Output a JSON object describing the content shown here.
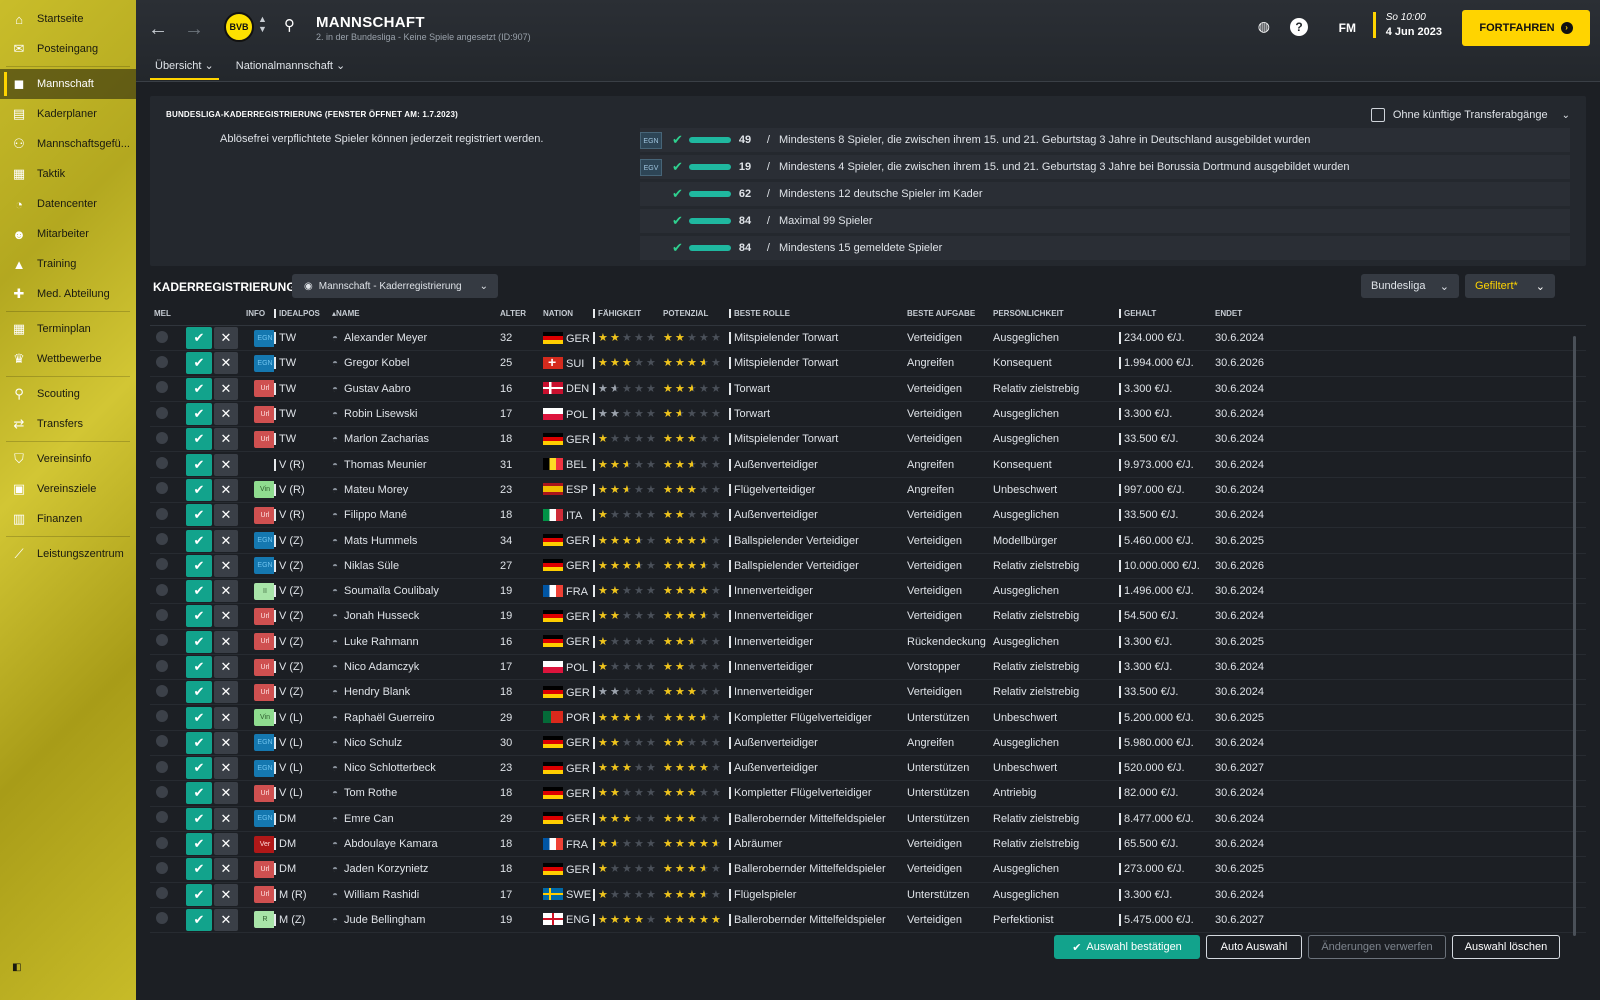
{
  "sidebar": {
    "items": [
      {
        "label": "Startseite",
        "icon": "home-icon",
        "glyph": "⌂"
      },
      {
        "label": "Posteingang",
        "icon": "inbox-icon",
        "glyph": "✉"
      },
      {
        "label": "Mannschaft",
        "icon": "shirt-icon",
        "glyph": "◼",
        "active": true
      },
      {
        "label": "Kaderplaner",
        "icon": "clipboard-icon",
        "glyph": "▤"
      },
      {
        "label": "Mannschaftsgefü...",
        "icon": "team-dynamics-icon",
        "glyph": "⚇"
      },
      {
        "label": "Taktik",
        "icon": "tactics-icon",
        "glyph": "▦"
      },
      {
        "label": "Datencenter",
        "icon": "data-center-icon",
        "glyph": "◔"
      },
      {
        "label": "Mitarbeiter",
        "icon": "staff-icon",
        "glyph": "☻"
      },
      {
        "label": "Training",
        "icon": "training-icon",
        "glyph": "▲"
      },
      {
        "label": "Med. Abteilung",
        "icon": "medical-icon",
        "glyph": "✚"
      },
      {
        "label": "Terminplan",
        "icon": "calendar-icon",
        "glyph": "▦"
      },
      {
        "label": "Wettbewerbe",
        "icon": "trophy-icon",
        "glyph": "♛"
      },
      {
        "label": "Scouting",
        "icon": "scouting-icon",
        "glyph": "⚲"
      },
      {
        "label": "Transfers",
        "icon": "transfers-icon",
        "glyph": "⇄"
      },
      {
        "label": "Vereinsinfo",
        "icon": "club-info-icon",
        "glyph": "⛉"
      },
      {
        "label": "Vereinsziele",
        "icon": "club-goals-icon",
        "glyph": "▣"
      },
      {
        "label": "Finanzen",
        "icon": "finances-icon",
        "glyph": "▥"
      },
      {
        "label": "Leistungszentrum",
        "icon": "performance-icon",
        "glyph": "⟋"
      }
    ]
  },
  "header": {
    "title": "MANNSCHAFT",
    "subtitle": "2. in der Bundesliga - Keine Spiele angesetzt (ID:907)",
    "club_logo": "BVB",
    "tabs": [
      {
        "label": "Übersicht",
        "active": true
      },
      {
        "label": "Nationalmannschaft",
        "active": false
      }
    ],
    "fm_label": "FM",
    "date_time": "So 10:00",
    "date_day": "4 Jun 2023",
    "continue_label": "FORTFAHREN"
  },
  "registration": {
    "title": "BUNDESLIGA-KADERREGISTRIERUNG (FENSTER ÖFFNET AM: 1.7.2023)",
    "note": "Ablösefrei verpflichtete Spieler können jederzeit registriert werden.",
    "future_transfers_label": "Ohne künftige Transferabgänge",
    "rules": [
      {
        "tag": "EGN",
        "value": "49",
        "text": "Mindestens 8 Spieler, die zwischen ihrem 15. und 21. Geburtstag 3 Jahre in Deutschland ausgebildet wurden"
      },
      {
        "tag": "EGV",
        "value": "19",
        "text": "Mindestens 4 Spieler, die zwischen ihrem 15. und 21. Geburtstag 3 Jahre bei Borussia Dortmund ausgebildet wurden"
      },
      {
        "tag": "",
        "value": "62",
        "text": "Mindestens 12 deutsche Spieler im Kader"
      },
      {
        "tag": "",
        "value": "84",
        "text": "Maximal 99 Spieler"
      },
      {
        "tag": "",
        "value": "84",
        "text": "Mindestens 15 gemeldete Spieler"
      }
    ]
  },
  "squad": {
    "title": "KADERREGISTRIERUNG",
    "view_select": "Mannschaft - Kaderregistrierung",
    "league_select": "Bundesliga",
    "filter_select": "Gefiltert*",
    "columns": {
      "mel": "MEL",
      "info": "INFO",
      "pos": "IDEALPOS",
      "name": "NAME",
      "age": "ALTER",
      "nation": "NATION",
      "ability": "FÄHIGKEIT",
      "potential": "POTENZIAL",
      "role": "BESTE ROLLE",
      "task": "BESTE AUFGABE",
      "personality": "PERSÖNLICHKEIT",
      "salary": "GEHALT",
      "ends": "ENDET"
    },
    "players": [
      {
        "info": "EGN",
        "pos": "TW",
        "name": "Alexander Meyer",
        "age": "32",
        "nation": "GER",
        "ability": 2,
        "potential": 2,
        "grey": false,
        "role": "Mitspielender Torwart",
        "task": "Verteidigen",
        "personality": "Ausgeglichen",
        "salary": "234.000 €/J.",
        "ends": "30.6.2024"
      },
      {
        "info": "EGN",
        "pos": "TW",
        "name": "Gregor Kobel",
        "age": "25",
        "nation": "SUI",
        "ability": 3,
        "potential": 3.5,
        "grey": false,
        "role": "Mitspielender Torwart",
        "task": "Angreifen",
        "personality": "Konsequent",
        "salary": "1.994.000 €/J.",
        "ends": "30.6.2026"
      },
      {
        "info": "Url",
        "pos": "TW",
        "name": "Gustav Aabro",
        "age": "16",
        "nation": "DEN",
        "ability": 1.5,
        "potential": 2.5,
        "grey": true,
        "role": "Torwart",
        "task": "Verteidigen",
        "personality": "Relativ zielstrebig",
        "salary": "3.300 €/J.",
        "ends": "30.6.2024"
      },
      {
        "info": "Url",
        "pos": "TW",
        "name": "Robin Lisewski",
        "age": "17",
        "nation": "POL",
        "ability": 2,
        "potential": 1.5,
        "grey": true,
        "role": "Torwart",
        "task": "Verteidigen",
        "personality": "Ausgeglichen",
        "salary": "3.300 €/J.",
        "ends": "30.6.2024"
      },
      {
        "info": "Url",
        "pos": "TW",
        "name": "Marlon Zacharias",
        "age": "18",
        "nation": "GER",
        "ability": 1,
        "potential": 3,
        "grey": false,
        "role": "Mitspielender Torwart",
        "task": "Verteidigen",
        "personality": "Ausgeglichen",
        "salary": "33.500 €/J.",
        "ends": "30.6.2024"
      },
      {
        "info": "",
        "pos": "V (R)",
        "name": "Thomas Meunier",
        "age": "31",
        "nation": "BEL",
        "ability": 2.5,
        "potential": 2.5,
        "grey": false,
        "role": "Außenverteidiger",
        "task": "Angreifen",
        "personality": "Konsequent",
        "salary": "9.973.000 €/J.",
        "ends": "30.6.2024"
      },
      {
        "info": "Vin",
        "pos": "V (R)",
        "name": "Mateu Morey",
        "age": "23",
        "nation": "ESP",
        "ability": 2.5,
        "potential": 3,
        "grey": false,
        "role": "Flügelverteidiger",
        "task": "Angreifen",
        "personality": "Unbeschwert",
        "salary": "997.000 €/J.",
        "ends": "30.6.2024"
      },
      {
        "info": "Url",
        "pos": "V (R)",
        "name": "Filippo Mané",
        "age": "18",
        "nation": "ITA",
        "ability": 1,
        "potential": 2,
        "grey": false,
        "role": "Außenverteidiger",
        "task": "Verteidigen",
        "personality": "Ausgeglichen",
        "salary": "33.500 €/J.",
        "ends": "30.6.2024"
      },
      {
        "info": "EGN",
        "pos": "V (Z)",
        "name": "Mats Hummels",
        "age": "34",
        "nation": "GER",
        "ability": 3.5,
        "potential": 3.5,
        "grey": false,
        "role": "Ballspielender Verteidiger",
        "task": "Verteidigen",
        "personality": "Modellbürger",
        "salary": "5.460.000 €/J.",
        "ends": "30.6.2025"
      },
      {
        "info": "EGN",
        "pos": "V (Z)",
        "name": "Niklas Süle",
        "age": "27",
        "nation": "GER",
        "ability": 3.5,
        "potential": 3.5,
        "grey": false,
        "role": "Ballspielender Verteidiger",
        "task": "Verteidigen",
        "personality": "Relativ zielstrebig",
        "salary": "10.000.000 €/J.",
        "ends": "30.6.2026"
      },
      {
        "info": "II",
        "pos": "V (Z)",
        "name": "Soumaïla Coulibaly",
        "age": "19",
        "nation": "FRA",
        "ability": 2,
        "potential": 4,
        "grey": false,
        "role": "Innenverteidiger",
        "task": "Verteidigen",
        "personality": "Ausgeglichen",
        "salary": "1.496.000 €/J.",
        "ends": "30.6.2024"
      },
      {
        "info": "Url",
        "pos": "V (Z)",
        "name": "Jonah Husseck",
        "age": "19",
        "nation": "GER",
        "ability": 2,
        "potential": 3.5,
        "grey": false,
        "role": "Innenverteidiger",
        "task": "Verteidigen",
        "personality": "Relativ zielstrebig",
        "salary": "54.500 €/J.",
        "ends": "30.6.2024"
      },
      {
        "info": "Url",
        "pos": "V (Z)",
        "name": "Luke Rahmann",
        "age": "16",
        "nation": "GER",
        "ability": 1,
        "potential": 2.5,
        "grey": false,
        "role": "Innenverteidiger",
        "task": "Rückendeckung",
        "personality": "Ausgeglichen",
        "salary": "3.300 €/J.",
        "ends": "30.6.2025"
      },
      {
        "info": "Url",
        "pos": "V (Z)",
        "name": "Nico Adamczyk",
        "age": "17",
        "nation": "POL",
        "ability": 1,
        "potential": 2,
        "grey": false,
        "role": "Innenverteidiger",
        "task": "Vorstopper",
        "personality": "Relativ zielstrebig",
        "salary": "3.300 €/J.",
        "ends": "30.6.2024"
      },
      {
        "info": "Url",
        "pos": "V (Z)",
        "name": "Hendry Blank",
        "age": "18",
        "nation": "GER",
        "ability": 2,
        "potential": 3,
        "grey": true,
        "role": "Innenverteidiger",
        "task": "Verteidigen",
        "personality": "Relativ zielstrebig",
        "salary": "33.500 €/J.",
        "ends": "30.6.2024"
      },
      {
        "info": "Vin",
        "pos": "V (L)",
        "name": "Raphaël Guerreiro",
        "age": "29",
        "nation": "POR",
        "ability": 3.5,
        "potential": 3.5,
        "grey": false,
        "role": "Kompletter Flügelverteidiger",
        "task": "Unterstützen",
        "personality": "Unbeschwert",
        "salary": "5.200.000 €/J.",
        "ends": "30.6.2025"
      },
      {
        "info": "EGN",
        "pos": "V (L)",
        "name": "Nico Schulz",
        "age": "30",
        "nation": "GER",
        "ability": 2,
        "potential": 2,
        "grey": false,
        "role": "Außenverteidiger",
        "task": "Angreifen",
        "personality": "Ausgeglichen",
        "salary": "5.980.000 €/J.",
        "ends": "30.6.2024"
      },
      {
        "info": "EGN",
        "pos": "V (L)",
        "name": "Nico Schlotterbeck",
        "age": "23",
        "nation": "GER",
        "ability": 3,
        "potential": 4,
        "grey": false,
        "role": "Außenverteidiger",
        "task": "Unterstützen",
        "personality": "Unbeschwert",
        "salary": "520.000 €/J.",
        "ends": "30.6.2027"
      },
      {
        "info": "Url",
        "pos": "V (L)",
        "name": "Tom Rothe",
        "age": "18",
        "nation": "GER",
        "ability": 2,
        "potential": 3,
        "grey": false,
        "role": "Kompletter Flügelverteidiger",
        "task": "Unterstützen",
        "personality": "Antriebig",
        "salary": "82.000 €/J.",
        "ends": "30.6.2024"
      },
      {
        "info": "EGN",
        "pos": "DM",
        "name": "Emre Can",
        "age": "29",
        "nation": "GER",
        "ability": 3,
        "potential": 3,
        "grey": false,
        "role": "Ballerobernder Mittelfeldspieler",
        "task": "Unterstützen",
        "personality": "Relativ zielstrebig",
        "salary": "8.477.000 €/J.",
        "ends": "30.6.2024"
      },
      {
        "info": "Ver",
        "pos": "DM",
        "name": "Abdoulaye Kamara",
        "age": "18",
        "nation": "FRA",
        "ability": 1.5,
        "potential": 4.5,
        "grey": false,
        "role": "Abräumer",
        "task": "Verteidigen",
        "personality": "Relativ zielstrebig",
        "salary": "65.500 €/J.",
        "ends": "30.6.2024"
      },
      {
        "info": "Url",
        "pos": "DM",
        "name": "Jaden Korzynietz",
        "age": "18",
        "nation": "GER",
        "ability": 1,
        "potential": 3.5,
        "grey": false,
        "role": "Ballerobernder Mittelfeldspieler",
        "task": "Verteidigen",
        "personality": "Ausgeglichen",
        "salary": "273.000 €/J.",
        "ends": "30.6.2025"
      },
      {
        "info": "Url",
        "pos": "M (R)",
        "name": "William Rashidi",
        "age": "17",
        "nation": "SWE",
        "ability": 1,
        "potential": 3.5,
        "grey": false,
        "role": "Flügelspieler",
        "task": "Unterstützen",
        "personality": "Ausgeglichen",
        "salary": "3.300 €/J.",
        "ends": "30.6.2024"
      },
      {
        "info": "R",
        "pos": "M (Z)",
        "name": "Jude Bellingham",
        "age": "19",
        "nation": "ENG",
        "ability": 4,
        "potential": 5,
        "grey": false,
        "role": "Ballerobernder Mittelfeldspieler",
        "task": "Verteidigen",
        "personality": "Perfektionist",
        "salary": "5.475.000 €/J.",
        "ends": "30.6.2027"
      }
    ]
  },
  "footer": {
    "confirm_label": "Auswahl bestätigen",
    "auto_label": "Auto Auswahl",
    "discard_label": "Änderungen verwerfen",
    "clear_label": "Auswahl löschen"
  },
  "colors": {
    "accent": "#ffd400",
    "confirm": "#12a38c",
    "sidebar": "#c9bd2a"
  }
}
